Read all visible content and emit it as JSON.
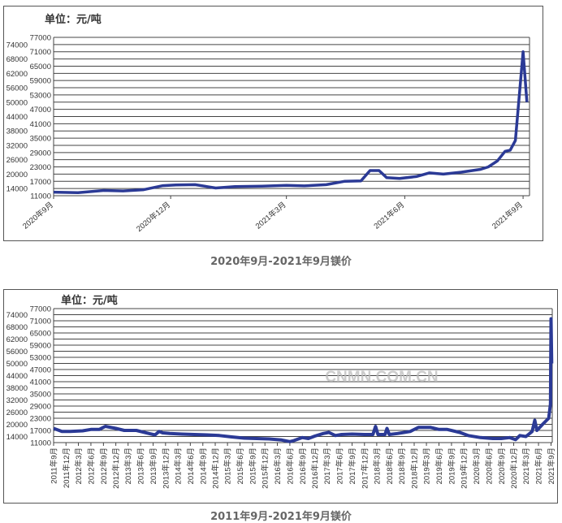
{
  "colors": {
    "line": "#2b3a96",
    "grid": "#444444",
    "frame": "#555555"
  },
  "watermark": "CNMN.COM.CN",
  "chart_data": [
    {
      "type": "line",
      "unit_label": "单位：元/吨",
      "caption": "2020年9月-2021年9月镁价",
      "ylim": [
        11000,
        77000
      ],
      "yticks": [
        11000,
        14000,
        17000,
        20000,
        23000,
        26000,
        29000,
        32000,
        35000,
        38000,
        41000,
        44000,
        47000,
        50000,
        53000,
        56000,
        59000,
        62000,
        65000,
        68000,
        71000,
        74000,
        77000
      ],
      "xlim": [
        "2020-09-01",
        "2021-09-06"
      ],
      "xticks": [
        {
          "x": "2020-09-01",
          "label": "2020年9月"
        },
        {
          "x": "2020-12-01",
          "label": "2020年12月"
        },
        {
          "x": "2021-03-01",
          "label": "2021年3月"
        },
        {
          "x": "2021-06-01",
          "label": "2021年6月"
        },
        {
          "x": "2021-09-01",
          "label": "2021年9月"
        }
      ],
      "grid": true,
      "series": [
        {
          "x": [
            "2020-09-01",
            "2020-09-20",
            "2020-10-10",
            "2020-10-25",
            "2020-11-10",
            "2020-11-25",
            "2020-12-05",
            "2020-12-20",
            "2021-01-05",
            "2021-01-20",
            "2021-02-10",
            "2021-03-01",
            "2021-03-15",
            "2021-04-01",
            "2021-04-15",
            "2021-04-28",
            "2021-05-05",
            "2021-05-12",
            "2021-05-18",
            "2021-05-28",
            "2021-06-10",
            "2021-06-20",
            "2021-07-01",
            "2021-07-15",
            "2021-07-30",
            "2021-08-05",
            "2021-08-12",
            "2021-08-18",
            "2021-08-22",
            "2021-08-26",
            "2021-09-01",
            "2021-09-04"
          ],
          "values": [
            12500,
            12300,
            13200,
            13000,
            13500,
            15200,
            15500,
            15600,
            14200,
            14800,
            15000,
            15300,
            15100,
            15600,
            17000,
            17200,
            21500,
            21500,
            18500,
            18200,
            19000,
            20500,
            20000,
            20800,
            22000,
            23000,
            25500,
            29500,
            30000,
            34000,
            71000,
            50000
          ]
        }
      ]
    },
    {
      "type": "line",
      "unit_label": "单位：元/吨",
      "caption": "2011年9月-2021年9月镁价",
      "ylim": [
        11000,
        77000
      ],
      "yticks": [
        11000,
        14000,
        17000,
        20000,
        23000,
        26000,
        29000,
        32000,
        35000,
        38000,
        41000,
        44000,
        47000,
        50000,
        53000,
        56000,
        59000,
        62000,
        65000,
        68000,
        71000,
        74000,
        77000
      ],
      "xlim": [
        "2011-09-01",
        "2021-09-10"
      ],
      "xticks": [
        {
          "x": "2011-09-01",
          "label": "2011年9月"
        },
        {
          "x": "2011-12-01",
          "label": "2011年12月"
        },
        {
          "x": "2012-03-01",
          "label": "2012年3月"
        },
        {
          "x": "2012-06-01",
          "label": "2012年6月"
        },
        {
          "x": "2012-09-01",
          "label": "2012年9月"
        },
        {
          "x": "2012-12-01",
          "label": "2012年12月"
        },
        {
          "x": "2013-03-01",
          "label": "2013年3月"
        },
        {
          "x": "2013-06-01",
          "label": "2013年6月"
        },
        {
          "x": "2013-09-01",
          "label": "2013年9月"
        },
        {
          "x": "2013-12-01",
          "label": "2013年12月"
        },
        {
          "x": "2014-03-01",
          "label": "2014年3月"
        },
        {
          "x": "2014-06-01",
          "label": "2014年6月"
        },
        {
          "x": "2014-09-01",
          "label": "2014年9月"
        },
        {
          "x": "2014-12-01",
          "label": "2014年12月"
        },
        {
          "x": "2015-03-01",
          "label": "2015年3月"
        },
        {
          "x": "2015-06-01",
          "label": "2015年6月"
        },
        {
          "x": "2015-09-01",
          "label": "2015年9月"
        },
        {
          "x": "2015-12-01",
          "label": "2015年12月"
        },
        {
          "x": "2016-03-01",
          "label": "2016年3月"
        },
        {
          "x": "2016-06-01",
          "label": "2016年6月"
        },
        {
          "x": "2016-09-01",
          "label": "2016年9月"
        },
        {
          "x": "2016-12-01",
          "label": "2016年12月"
        },
        {
          "x": "2017-03-01",
          "label": "2017年3月"
        },
        {
          "x": "2017-06-01",
          "label": "2017年6月"
        },
        {
          "x": "2017-09-01",
          "label": "2017年9月"
        },
        {
          "x": "2017-12-01",
          "label": "2017年12月"
        },
        {
          "x": "2018-03-01",
          "label": "2018年3月"
        },
        {
          "x": "2018-06-01",
          "label": "2018年6月"
        },
        {
          "x": "2018-09-01",
          "label": "2018年9月"
        },
        {
          "x": "2018-12-01",
          "label": "2018年12月"
        },
        {
          "x": "2019-03-01",
          "label": "2019年3月"
        },
        {
          "x": "2019-06-01",
          "label": "2019年6月"
        },
        {
          "x": "2019-09-01",
          "label": "2019年9月"
        },
        {
          "x": "2019-12-01",
          "label": "2019年12月"
        },
        {
          "x": "2020-03-01",
          "label": "2020年3月"
        },
        {
          "x": "2020-06-01",
          "label": "2020年6月"
        },
        {
          "x": "2020-09-01",
          "label": "2020年9月"
        },
        {
          "x": "2020-12-01",
          "label": "2020年12月"
        },
        {
          "x": "2021-03-01",
          "label": "2021年3月"
        },
        {
          "x": "2021-06-01",
          "label": "2021年6月"
        },
        {
          "x": "2021-09-01",
          "label": "2021年9月"
        }
      ],
      "grid": true,
      "series": [
        {
          "x": [
            "2011-09-01",
            "2011-11-01",
            "2012-01-01",
            "2012-04-01",
            "2012-06-01",
            "2012-08-01",
            "2012-09-15",
            "2012-12-01",
            "2013-02-01",
            "2013-05-01",
            "2013-08-01",
            "2013-09-15",
            "2013-10-15",
            "2013-11-10",
            "2014-01-01",
            "2014-04-01",
            "2014-07-01",
            "2014-10-01",
            "2015-01-01",
            "2015-04-01",
            "2015-07-01",
            "2015-10-01",
            "2016-01-01",
            "2016-04-01",
            "2016-06-01",
            "2016-07-01",
            "2016-09-01",
            "2016-10-15",
            "2016-12-01",
            "2017-02-01",
            "2017-03-15",
            "2017-05-01",
            "2017-06-15",
            "2017-09-01",
            "2017-12-01",
            "2018-02-01",
            "2018-02-20",
            "2018-03-10",
            "2018-05-01",
            "2018-05-15",
            "2018-06-01",
            "2018-08-01",
            "2018-11-01",
            "2019-01-01",
            "2019-04-01",
            "2019-06-01",
            "2019-08-01",
            "2019-11-01",
            "2020-01-01",
            "2020-04-01",
            "2020-07-01",
            "2020-09-01",
            "2020-11-01",
            "2020-12-15",
            "2021-01-15",
            "2021-03-01",
            "2021-04-15",
            "2021-05-05",
            "2021-05-20",
            "2021-07-01",
            "2021-08-15",
            "2021-08-28",
            "2021-09-01",
            "2021-09-06"
          ],
          "values": [
            18000,
            16500,
            16500,
            16800,
            17500,
            17500,
            19000,
            18000,
            17000,
            17000,
            15500,
            14800,
            16500,
            15800,
            15500,
            15200,
            15000,
            14800,
            14500,
            13800,
            13200,
            13000,
            12800,
            12300,
            11500,
            12000,
            13500,
            13000,
            14200,
            15500,
            16000,
            14500,
            15000,
            15200,
            15000,
            15000,
            19000,
            15000,
            15000,
            18000,
            15000,
            15500,
            16500,
            18500,
            18500,
            17500,
            17500,
            16000,
            14500,
            13500,
            13000,
            13000,
            13500,
            12500,
            14500,
            14000,
            16500,
            22000,
            17000,
            20000,
            23000,
            30000,
            72000,
            50000
          ]
        }
      ]
    }
  ]
}
